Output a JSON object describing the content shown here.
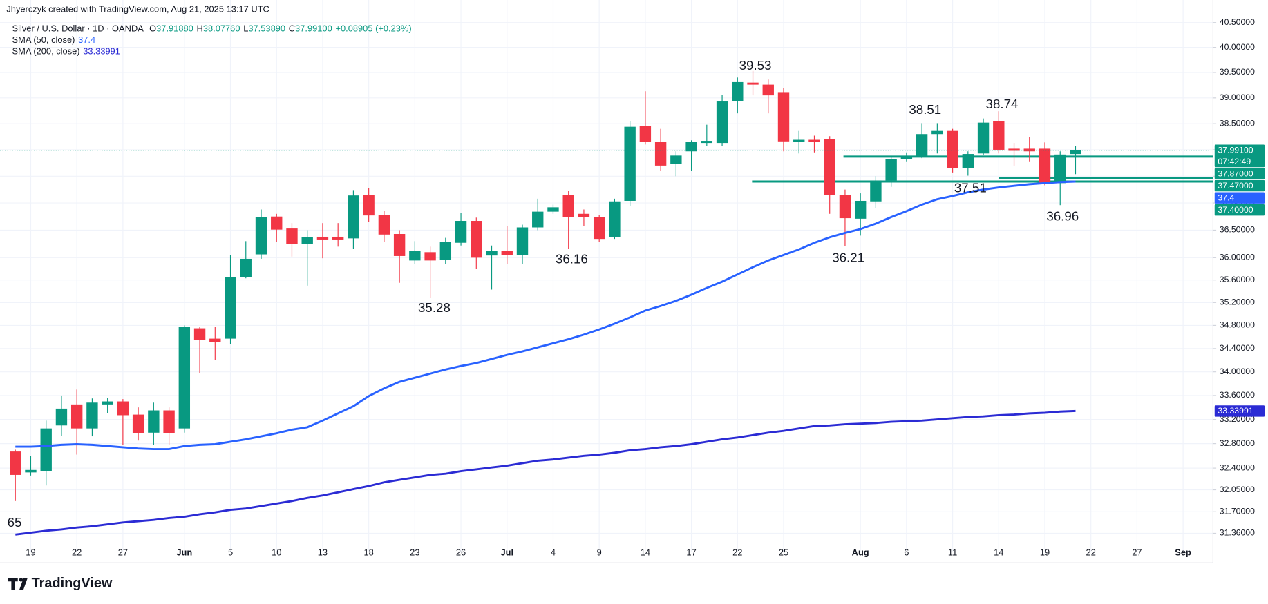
{
  "credit": "Jhyerczyk created with TradingView.com, Aug 21, 2025 13:17 UTC",
  "footer": {
    "brand": "TradingView"
  },
  "chart_data": {
    "type": "candlestick",
    "title": "Silver / U.S. Dollar · 1D · OANDA",
    "legend": {
      "ohlc": [
        {
          "label": "O",
          "value": "37.91880"
        },
        {
          "label": "H",
          "value": "38.07760"
        },
        {
          "label": "L",
          "value": "37.53890"
        },
        {
          "label": "C",
          "value": "37.99100"
        }
      ],
      "change": "+0.08905 (+0.23%)"
    },
    "categories": [
      null,
      "19",
      null,
      null,
      "22",
      null,
      null,
      "27",
      null,
      null,
      null,
      "Jun",
      null,
      null,
      "5",
      null,
      null,
      "10",
      null,
      null,
      "13",
      null,
      null,
      "18",
      null,
      null,
      "23",
      null,
      null,
      "26",
      null,
      null,
      "Jul",
      null,
      null,
      "4",
      null,
      null,
      "9",
      null,
      null,
      "14",
      null,
      null,
      "17",
      null,
      null,
      "22",
      null,
      null,
      "25",
      null,
      null,
      null,
      null,
      "Aug",
      null,
      null,
      "6",
      null,
      null,
      "11",
      null,
      null,
      "14",
      null,
      null,
      "19",
      null,
      null,
      "22",
      null,
      null,
      "27",
      null,
      null,
      "Sep"
    ],
    "open": [
      32.67,
      32.33,
      32.35,
      33.1,
      33.45,
      33.05,
      33.45,
      33.5,
      33.28,
      32.98,
      33.35,
      33.05,
      34.75,
      34.57,
      34.57,
      35.65,
      36.06,
      36.75,
      36.53,
      36.25,
      36.38,
      36.38,
      36.35,
      37.15,
      36.78,
      36.43,
      35.95,
      36.1,
      35.96,
      36.27,
      36.67,
      36.04,
      36.12,
      36.05,
      36.55,
      36.84,
      37.15,
      36.8,
      36.74,
      36.38,
      37.04,
      38.46,
      38.15,
      37.73,
      37.97,
      38.13,
      38.13,
      38.94,
      39.3,
      39.26,
      39.1,
      38.15,
      38.19,
      38.2,
      37.15,
      36.71,
      37.03,
      37.42,
      37.82,
      37.87,
      38.3,
      38.36,
      37.65,
      37.93,
      38.55,
      38.02,
      38.02,
      38.02,
      37.37,
      37.9188,
      null,
      null,
      null,
      null,
      null,
      null,
      null
    ],
    "high": [
      32.7,
      32.6,
      33.18,
      33.6,
      33.7,
      33.55,
      33.56,
      33.54,
      33.4,
      33.48,
      33.4,
      34.8,
      34.78,
      34.78,
      36.05,
      36.3,
      36.88,
      36.8,
      36.63,
      36.5,
      36.63,
      36.63,
      37.24,
      37.28,
      36.85,
      36.5,
      36.3,
      36.2,
      36.36,
      36.82,
      36.73,
      36.22,
      36.57,
      36.6,
      37.08,
      36.97,
      37.22,
      36.88,
      36.78,
      37.08,
      38.55,
      39.13,
      38.4,
      37.97,
      38.18,
      38.48,
      39.06,
      39.4,
      39.53,
      39.36,
      39.2,
      38.36,
      38.27,
      38.26,
      37.25,
      37.18,
      37.5,
      37.87,
      37.95,
      38.51,
      38.51,
      38.4,
      37.97,
      38.6,
      38.74,
      38.13,
      38.25,
      38.14,
      37.97,
      38.0776,
      null,
      null,
      null,
      null,
      null,
      null,
      null
    ],
    "low": [
      31.87,
      32.28,
      32.12,
      32.93,
      32.62,
      32.92,
      33.3,
      32.78,
      32.85,
      32.78,
      32.78,
      32.98,
      33.98,
      34.2,
      34.48,
      35.63,
      35.98,
      36.28,
      36.02,
      35.5,
      35.99,
      36.2,
      36.16,
      36.65,
      36.28,
      35.55,
      35.88,
      35.28,
      35.88,
      36.22,
      35.8,
      35.43,
      35.88,
      35.88,
      36.5,
      36.8,
      36.16,
      36.57,
      36.28,
      36.34,
      36.95,
      38.1,
      37.6,
      37.5,
      37.6,
      38.07,
      38.07,
      38.7,
      39.05,
      38.7,
      37.97,
      37.93,
      37.95,
      36.8,
      36.21,
      36.4,
      36.9,
      37.3,
      37.78,
      37.84,
      37.93,
      37.57,
      37.51,
      37.9,
      37.93,
      37.7,
      37.78,
      37.33,
      36.96,
      37.5389,
      null,
      null,
      null,
      null,
      null,
      null,
      null
    ],
    "close": [
      32.29,
      32.37,
      33.05,
      33.38,
      33.05,
      33.48,
      33.5,
      33.27,
      32.97,
      33.35,
      32.97,
      34.78,
      34.55,
      34.51,
      35.65,
      35.98,
      36.74,
      36.51,
      36.25,
      36.37,
      36.33,
      36.33,
      37.14,
      36.77,
      36.42,
      36.03,
      36.12,
      35.95,
      36.29,
      36.67,
      36.0,
      36.12,
      36.05,
      36.55,
      36.84,
      36.92,
      36.74,
      36.74,
      36.34,
      37.03,
      38.44,
      38.15,
      37.7,
      37.89,
      38.15,
      38.17,
      38.93,
      39.31,
      39.26,
      39.05,
      38.16,
      38.19,
      38.15,
      37.15,
      36.72,
      37.04,
      37.42,
      37.82,
      37.87,
      38.3,
      38.36,
      37.65,
      37.92,
      38.52,
      38.0,
      37.98,
      37.97,
      37.37,
      37.91,
      37.991,
      null,
      null,
      null,
      null,
      null,
      null,
      null
    ],
    "last_label": "37.99100",
    "countdown": "07:42:49",
    "up_color": "#089981",
    "down_color": "#f23645",
    "series": [
      {
        "name": "SMA (50, close)",
        "color": "#2962ff",
        "last_label": "37.4",
        "values": [
          32.75,
          32.75,
          32.76,
          32.78,
          32.79,
          32.78,
          32.76,
          32.74,
          32.72,
          32.71,
          32.71,
          32.76,
          32.78,
          32.79,
          32.83,
          32.87,
          32.92,
          32.97,
          33.03,
          33.07,
          33.18,
          33.3,
          33.42,
          33.59,
          33.72,
          33.83,
          33.9,
          33.97,
          34.04,
          34.1,
          34.15,
          34.22,
          34.29,
          34.35,
          34.42,
          34.49,
          34.56,
          34.64,
          34.73,
          34.83,
          34.94,
          35.06,
          35.14,
          35.23,
          35.34,
          35.46,
          35.57,
          35.7,
          35.83,
          35.95,
          36.05,
          36.15,
          36.27,
          36.37,
          36.45,
          36.52,
          36.62,
          36.74,
          36.85,
          36.97,
          37.07,
          37.13,
          37.2,
          37.25,
          37.29,
          37.32,
          37.35,
          37.37,
          37.39,
          37.4,
          null,
          null,
          null,
          null,
          null,
          null,
          null
        ]
      },
      {
        "name": "SMA (200, close)",
        "color": "#2b2bd4",
        "last_label": "33.33991",
        "values": [
          31.34,
          31.37,
          31.4,
          31.42,
          31.45,
          31.47,
          31.5,
          31.53,
          31.55,
          31.57,
          31.6,
          31.62,
          31.66,
          31.69,
          31.73,
          31.75,
          31.79,
          31.83,
          31.87,
          31.92,
          31.96,
          32.01,
          32.06,
          32.11,
          32.17,
          32.21,
          32.25,
          32.29,
          32.31,
          32.35,
          32.38,
          32.41,
          32.44,
          32.48,
          32.52,
          32.54,
          32.57,
          32.6,
          32.62,
          32.65,
          32.69,
          32.71,
          32.74,
          32.76,
          32.79,
          32.83,
          32.87,
          32.9,
          32.94,
          32.98,
          33.01,
          33.05,
          33.09,
          33.1,
          33.12,
          33.13,
          33.14,
          33.16,
          33.17,
          33.18,
          33.2,
          33.22,
          33.24,
          33.25,
          33.27,
          33.28,
          33.3,
          33.31,
          33.33,
          33.34,
          null,
          null,
          null,
          null,
          null,
          null,
          null
        ]
      }
    ],
    "hlines": [
      {
        "value": 37.87,
        "label": "37.87000"
      },
      {
        "value": 37.47,
        "label": "37.47000"
      },
      {
        "value": 37.4,
        "label": "37.40000"
      }
    ],
    "annotations": [
      "39.53",
      "38.51",
      "38.74",
      "36.16",
      "35.28",
      "36.21",
      "37.51",
      "36.96",
      "65"
    ],
    "log_scale": true,
    "grid": true,
    "ylim": [
      31.2,
      40.96
    ],
    "yticks": [
      {
        "value": 40.5,
        "label": "40.50000"
      },
      {
        "value": 40,
        "label": "40.00000"
      },
      {
        "value": 39.5,
        "label": "39.50000"
      },
      {
        "value": 39,
        "label": "39.00000"
      },
      {
        "value": 38.5,
        "label": "38.50000"
      },
      {
        "value": 38,
        "label": "38.00000"
      },
      {
        "value": 37.5,
        "label": "37.50000"
      },
      {
        "value": 37,
        "label": "37.00000"
      },
      {
        "value": 36.5,
        "label": "36.50000"
      },
      {
        "value": 36,
        "label": "36.00000"
      },
      {
        "value": 35.6,
        "label": "35.60000"
      },
      {
        "value": 35.2,
        "label": "35.20000"
      },
      {
        "value": 34.8,
        "label": "34.80000"
      },
      {
        "value": 34.4,
        "label": "34.40000"
      },
      {
        "value": 34,
        "label": "34.00000"
      },
      {
        "value": 33.6,
        "label": "33.60000"
      },
      {
        "value": 33.2,
        "label": "33.20000"
      },
      {
        "value": 32.8,
        "label": "32.80000"
      },
      {
        "value": 32.4,
        "label": "32.40000"
      },
      {
        "value": 32.05,
        "label": "32.05000"
      },
      {
        "value": 31.7,
        "label": "31.70000"
      },
      {
        "value": 31.36,
        "label": "31.36000"
      }
    ]
  }
}
